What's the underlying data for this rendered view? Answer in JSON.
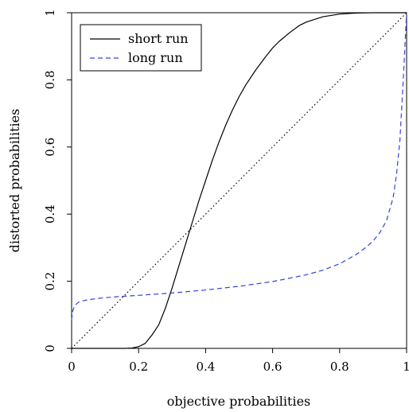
{
  "chart_data": {
    "type": "line",
    "title": "",
    "xlabel": "objective probabilities",
    "ylabel": "distorted probabilities",
    "xlim": [
      0,
      1
    ],
    "ylim": [
      0,
      1
    ],
    "x_ticks": [
      0,
      0.2,
      0.4,
      0.6,
      0.8,
      1
    ],
    "x_tick_labels": [
      "0",
      "0.2",
      "0.4",
      "0.6",
      "0.8",
      "1"
    ],
    "y_ticks": [
      0,
      0.2,
      0.4,
      0.6,
      0.8,
      1
    ],
    "y_tick_labels": [
      "0",
      "0.2",
      "0.4",
      "0.6",
      "0.8",
      "1"
    ],
    "grid": false,
    "legend_position": "top-left",
    "series": [
      {
        "name": "short run",
        "color": "#000000",
        "style": "solid",
        "x": [
          0,
          0.16,
          0.18,
          0.2,
          0.22,
          0.24,
          0.26,
          0.28,
          0.3,
          0.32,
          0.34,
          0.36,
          0.38,
          0.4,
          0.42,
          0.44,
          0.46,
          0.48,
          0.5,
          0.52,
          0.55,
          0.58,
          0.6,
          0.62,
          0.65,
          0.68,
          0.7,
          0.75,
          0.8,
          0.85,
          0.9,
          1
        ],
        "y": [
          0,
          0,
          0.001,
          0.005,
          0.015,
          0.04,
          0.07,
          0.12,
          0.18,
          0.245,
          0.31,
          0.375,
          0.44,
          0.5,
          0.56,
          0.615,
          0.665,
          0.71,
          0.75,
          0.785,
          0.83,
          0.87,
          0.895,
          0.915,
          0.94,
          0.962,
          0.972,
          0.988,
          0.996,
          0.999,
          1.0,
          1.0
        ]
      },
      {
        "name": "long run",
        "color": "#3344dd",
        "style": "dashed",
        "x": [
          0,
          0.003,
          0.007,
          0.012,
          0.02,
          0.03,
          0.05,
          0.08,
          0.1,
          0.15,
          0.2,
          0.3,
          0.4,
          0.5,
          0.6,
          0.7,
          0.75,
          0.8,
          0.85,
          0.88,
          0.9,
          0.92,
          0.94,
          0.96,
          0.97,
          0.98,
          0.99,
          0.995,
          1
        ],
        "y": [
          0.085,
          0.11,
          0.122,
          0.13,
          0.137,
          0.141,
          0.145,
          0.149,
          0.151,
          0.155,
          0.158,
          0.165,
          0.174,
          0.185,
          0.199,
          0.219,
          0.233,
          0.252,
          0.28,
          0.302,
          0.32,
          0.345,
          0.38,
          0.45,
          0.52,
          0.62,
          0.8,
          0.9,
          1.0
        ]
      },
      {
        "name": "",
        "color": "#000000",
        "style": "dotted",
        "x": [
          0,
          1
        ],
        "y": [
          0,
          1
        ]
      }
    ]
  }
}
